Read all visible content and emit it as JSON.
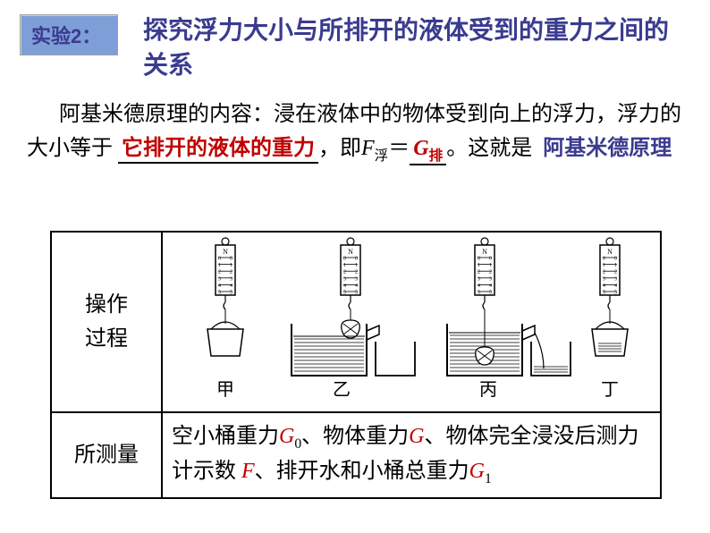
{
  "badge": {
    "text": "实验2："
  },
  "title": {
    "line": "探究浮力大小与所排开的液体受到的重力之间的关系"
  },
  "paragraph": {
    "lead": "阿基米德原理的内容：浸在液体中的物体受到向上的浮力，浮力的大小等于",
    "fill1": "它排开的液体的重力",
    "after1": "，即",
    "formula_lhs_var": "F",
    "formula_lhs_sub": "浮",
    "equals": "＝",
    "fill2_var": "G",
    "fill2_sub": "排",
    "after2": "。这就是",
    "principle": "阿基米德原理"
  },
  "table": {
    "row1_label": "操作\n过程",
    "row2_label": "所测量",
    "row2_content_prefix": "空小桶重力",
    "G0_var": "G",
    "G0_sub": "0",
    "sep1": "、物体重力",
    "G_var": "G",
    "sep2": "、物体完全浸没后测力计示数 ",
    "F_var": "F",
    "sep3": "、排开水和小桶总重力",
    "G1_var": "G",
    "G1_sub": "1"
  },
  "diagram": {
    "labels": [
      "甲",
      "乙",
      "丙",
      "丁"
    ],
    "scale_ticks": [
      "0",
      "1",
      "2",
      "3",
      "4",
      "5"
    ],
    "scale_top": "N",
    "background": "#ffffff",
    "line_color": "#000000",
    "group_x": [
      70,
      210,
      360,
      500
    ],
    "beaker_w": 84,
    "beaker_h": 58,
    "small_beaker_w": 44,
    "small_beaker_h": 38,
    "bucket_w": 40,
    "bucket_h": 30
  }
}
